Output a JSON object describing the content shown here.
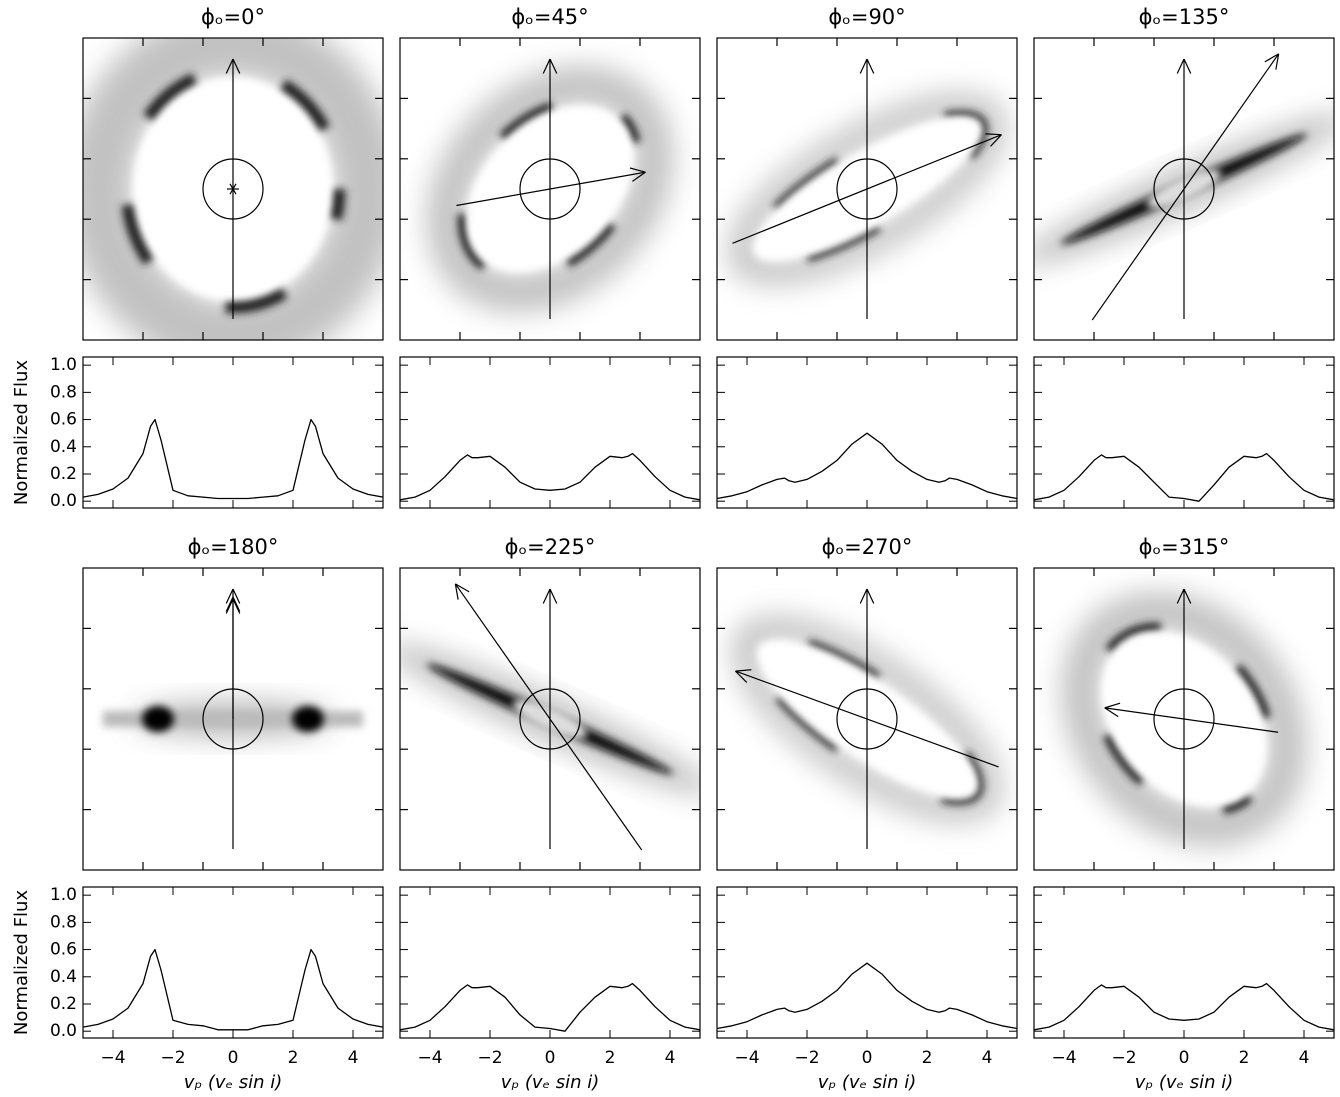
{
  "chart_data": [
    {
      "type": "line",
      "title": "ϕₒ=0°",
      "ylabel": "Normalized Flux",
      "x": [
        -5,
        -4.5,
        -4,
        -3.5,
        -3,
        -2.75,
        -2.6,
        -2.4,
        -2,
        -1.5,
        -1,
        -0.5,
        0,
        0.5,
        1,
        1.5,
        2,
        2.4,
        2.6,
        2.75,
        3,
        3.5,
        4,
        4.5,
        5
      ],
      "values": [
        0.03,
        0.05,
        0.09,
        0.17,
        0.35,
        0.55,
        0.6,
        0.45,
        0.08,
        0.04,
        0.03,
        0.02,
        0.02,
        0.02,
        0.03,
        0.04,
        0.08,
        0.45,
        0.6,
        0.55,
        0.35,
        0.17,
        0.09,
        0.05,
        0.03
      ],
      "color": "#000000",
      "xlim": [
        -5,
        5
      ],
      "ylim": [
        -0.05,
        1.06
      ],
      "xticks": [
        -4,
        -2,
        0,
        2,
        4
      ],
      "yticks": [
        {
          "value": 0,
          "label": "0.0"
        },
        {
          "value": 0.2,
          "label": "0.2"
        },
        {
          "value": 0.4,
          "label": "0.4"
        },
        {
          "value": 0.6,
          "label": "0.6"
        },
        {
          "value": 0.8,
          "label": "0.8"
        },
        {
          "value": 1,
          "label": "1.0"
        }
      ]
    },
    {
      "type": "line",
      "title": "ϕₒ=45°",
      "x": [
        -5,
        -4.5,
        -4,
        -3.5,
        -3,
        -2.75,
        -2.6,
        -2.4,
        -2,
        -1.5,
        -1,
        -0.5,
        0,
        0.5,
        1,
        1.5,
        2,
        2.4,
        2.6,
        2.75,
        3,
        3.5,
        4,
        4.5,
        5
      ],
      "values": [
        0.01,
        0.03,
        0.08,
        0.18,
        0.3,
        0.34,
        0.32,
        0.32,
        0.33,
        0.25,
        0.14,
        0.09,
        0.08,
        0.09,
        0.14,
        0.25,
        0.33,
        0.32,
        0.33,
        0.35,
        0.3,
        0.18,
        0.08,
        0.03,
        0.01
      ],
      "color": "#000000",
      "xlim": [
        -5,
        5
      ],
      "ylim": [
        -0.05,
        1.06
      ],
      "xticks": [
        -4,
        -2,
        0,
        2,
        4
      ],
      "yticks": [
        0,
        0.2,
        0.4,
        0.6,
        0.8,
        1
      ]
    },
    {
      "type": "line",
      "title": "ϕₒ=90°",
      "x": [
        -5,
        -4.5,
        -4,
        -3.5,
        -3,
        -2.75,
        -2.6,
        -2.4,
        -2,
        -1.5,
        -1,
        -0.5,
        0,
        0.5,
        1,
        1.5,
        2,
        2.4,
        2.6,
        2.75,
        3,
        3.5,
        4,
        4.5,
        5
      ],
      "values": [
        0.02,
        0.04,
        0.07,
        0.12,
        0.16,
        0.17,
        0.15,
        0.14,
        0.16,
        0.22,
        0.3,
        0.42,
        0.5,
        0.42,
        0.3,
        0.22,
        0.16,
        0.14,
        0.15,
        0.17,
        0.16,
        0.12,
        0.07,
        0.04,
        0.02
      ],
      "color": "#000000",
      "xlim": [
        -5,
        5
      ],
      "ylim": [
        -0.05,
        1.06
      ],
      "xticks": [
        -4,
        -2,
        0,
        2,
        4
      ],
      "yticks": [
        0,
        0.2,
        0.4,
        0.6,
        0.8,
        1
      ]
    },
    {
      "type": "line",
      "title": "ϕₒ=135°",
      "x": [
        -5,
        -4.5,
        -4,
        -3.5,
        -3,
        -2.75,
        -2.6,
        -2.4,
        -2,
        -1.5,
        -1,
        -0.5,
        0,
        0.5,
        1,
        1.5,
        2,
        2.4,
        2.6,
        2.75,
        3,
        3.5,
        4,
        4.5,
        5
      ],
      "values": [
        0.01,
        0.03,
        0.08,
        0.18,
        0.3,
        0.34,
        0.32,
        0.32,
        0.33,
        0.25,
        0.14,
        0.03,
        0.02,
        0.0,
        0.12,
        0.25,
        0.33,
        0.32,
        0.33,
        0.35,
        0.3,
        0.18,
        0.08,
        0.03,
        0.01
      ],
      "color": "#000000",
      "xlim": [
        -5,
        5
      ],
      "ylim": [
        -0.05,
        1.06
      ],
      "xticks": [
        -4,
        -2,
        0,
        2,
        4
      ],
      "yticks": [
        0,
        0.2,
        0.4,
        0.6,
        0.8,
        1
      ]
    },
    {
      "type": "line",
      "title": "ϕₒ=180°",
      "ylabel": "Normalized Flux",
      "xlabel": "vₚ (vₑ sin i)",
      "x": [
        -5,
        -4.5,
        -4,
        -3.5,
        -3,
        -2.75,
        -2.6,
        -2.4,
        -2,
        -1.5,
        -1,
        -0.5,
        0,
        0.5,
        1,
        1.5,
        2,
        2.4,
        2.6,
        2.75,
        3,
        3.5,
        4,
        4.5,
        5
      ],
      "values": [
        0.03,
        0.05,
        0.09,
        0.17,
        0.35,
        0.55,
        0.6,
        0.45,
        0.08,
        0.05,
        0.04,
        0.01,
        0.01,
        0.01,
        0.04,
        0.05,
        0.08,
        0.45,
        0.6,
        0.55,
        0.35,
        0.17,
        0.09,
        0.05,
        0.03
      ],
      "color": "#000000",
      "xlim": [
        -5,
        5
      ],
      "ylim": [
        -0.05,
        1.06
      ],
      "xticks": [
        {
          "value": -4,
          "label": "−4"
        },
        {
          "value": -2,
          "label": "−2"
        },
        0,
        2,
        4
      ],
      "yticks": [
        {
          "value": 0,
          "label": "0.0"
        },
        {
          "value": 0.2,
          "label": "0.2"
        },
        {
          "value": 0.4,
          "label": "0.4"
        },
        {
          "value": 0.6,
          "label": "0.6"
        },
        {
          "value": 0.8,
          "label": "0.8"
        },
        {
          "value": 1,
          "label": "1.0"
        }
      ]
    },
    {
      "type": "line",
      "title": "ϕₒ=225°",
      "xlabel": "vₚ (vₑ sin i)",
      "x": [
        -5,
        -4.5,
        -4,
        -3.5,
        -3,
        -2.75,
        -2.6,
        -2.4,
        -2,
        -1.5,
        -1,
        -0.5,
        0,
        0.5,
        1,
        1.5,
        2,
        2.4,
        2.6,
        2.75,
        3,
        3.5,
        4,
        4.5,
        5
      ],
      "values": [
        0.01,
        0.03,
        0.08,
        0.18,
        0.3,
        0.34,
        0.32,
        0.32,
        0.33,
        0.25,
        0.12,
        0.03,
        0.02,
        0.0,
        0.14,
        0.25,
        0.33,
        0.32,
        0.33,
        0.35,
        0.3,
        0.18,
        0.08,
        0.03,
        0.01
      ],
      "color": "#000000",
      "xlim": [
        -5,
        5
      ],
      "ylim": [
        -0.05,
        1.06
      ],
      "xticks": [
        {
          "value": -4,
          "label": "−4"
        },
        {
          "value": -2,
          "label": "−2"
        },
        0,
        2,
        4
      ],
      "yticks": [
        0,
        0.2,
        0.4,
        0.6,
        0.8,
        1
      ]
    },
    {
      "type": "line",
      "title": "ϕₒ=270°",
      "xlabel": "vₚ (vₑ sin i)",
      "x": [
        -5,
        -4.5,
        -4,
        -3.5,
        -3,
        -2.75,
        -2.6,
        -2.4,
        -2,
        -1.5,
        -1,
        -0.5,
        0,
        0.5,
        1,
        1.5,
        2,
        2.4,
        2.6,
        2.75,
        3,
        3.5,
        4,
        4.5,
        5
      ],
      "values": [
        0.02,
        0.04,
        0.07,
        0.12,
        0.16,
        0.17,
        0.15,
        0.14,
        0.16,
        0.22,
        0.3,
        0.42,
        0.5,
        0.42,
        0.3,
        0.22,
        0.16,
        0.14,
        0.15,
        0.17,
        0.16,
        0.12,
        0.07,
        0.04,
        0.02
      ],
      "color": "#000000",
      "xlim": [
        -5,
        5
      ],
      "ylim": [
        -0.05,
        1.06
      ],
      "xticks": [
        {
          "value": -4,
          "label": "−4"
        },
        {
          "value": -2,
          "label": "−2"
        },
        0,
        2,
        4
      ],
      "yticks": [
        0,
        0.2,
        0.4,
        0.6,
        0.8,
        1
      ]
    },
    {
      "type": "line",
      "title": "ϕₒ=315°",
      "xlabel": "vₚ (vₑ sin i)",
      "x": [
        -5,
        -4.5,
        -4,
        -3.5,
        -3,
        -2.75,
        -2.6,
        -2.4,
        -2,
        -1.5,
        -1,
        -0.5,
        0,
        0.5,
        1,
        1.5,
        2,
        2.4,
        2.6,
        2.75,
        3,
        3.5,
        4,
        4.5,
        5
      ],
      "values": [
        0.01,
        0.03,
        0.08,
        0.18,
        0.3,
        0.34,
        0.32,
        0.32,
        0.33,
        0.25,
        0.14,
        0.09,
        0.08,
        0.09,
        0.14,
        0.25,
        0.33,
        0.32,
        0.33,
        0.35,
        0.3,
        0.18,
        0.08,
        0.03,
        0.01
      ],
      "color": "#000000",
      "xlim": [
        -5,
        5
      ],
      "ylim": [
        -0.05,
        1.06
      ],
      "xticks": [
        {
          "value": -4,
          "label": "−4"
        },
        {
          "value": -2,
          "label": "−2"
        },
        0,
        2,
        4
      ],
      "yticks": [
        0,
        0.2,
        0.4,
        0.6,
        0.8,
        1
      ]
    }
  ]
}
